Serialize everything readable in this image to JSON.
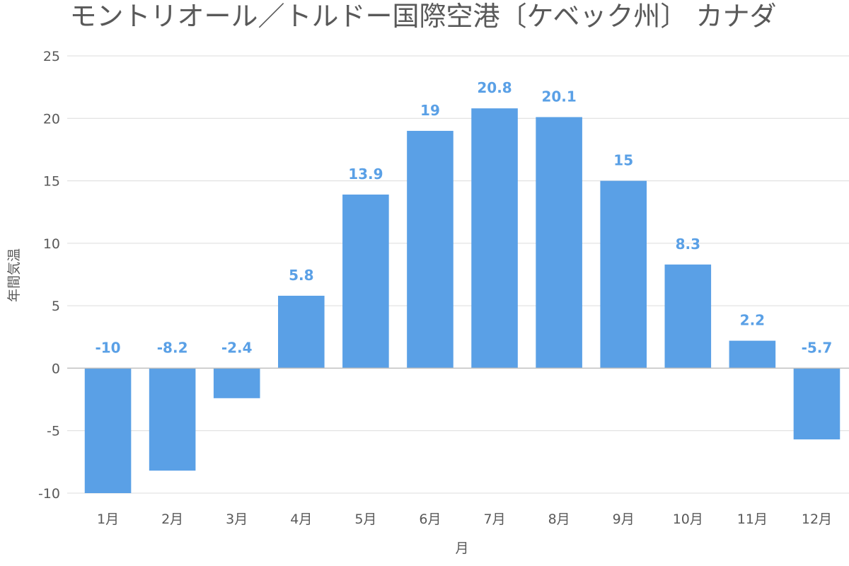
{
  "chart_data": {
    "type": "bar",
    "title": "モントリオール／トルドー国際空港〔ケベック州〕 カナダ",
    "xlabel": "月",
    "ylabel": "年間気温",
    "categories": [
      "1月",
      "2月",
      "3月",
      "4月",
      "5月",
      "6月",
      "7月",
      "8月",
      "9月",
      "10月",
      "11月",
      "12月"
    ],
    "values": [
      -10,
      -8.2,
      -2.4,
      5.8,
      13.9,
      19,
      20.8,
      20.1,
      15,
      8.3,
      2.2,
      -5.7
    ],
    "data_labels": [
      "-10",
      "-8.2",
      "-2.4",
      "5.8",
      "13.9",
      "19",
      "20.8",
      "20.1",
      "15",
      "8.3",
      "2.2",
      "-5.7"
    ],
    "ylim": [
      -10,
      25
    ],
    "yticks": [
      -10,
      -5,
      0,
      5,
      10,
      15,
      20,
      25
    ],
    "ytick_labels": [
      "-10",
      "-5",
      "0",
      "5",
      "10",
      "15",
      "20",
      "25"
    ],
    "grid": true,
    "bar_color": "#5aa0e6",
    "data_label_color": "#5aa0e6"
  }
}
